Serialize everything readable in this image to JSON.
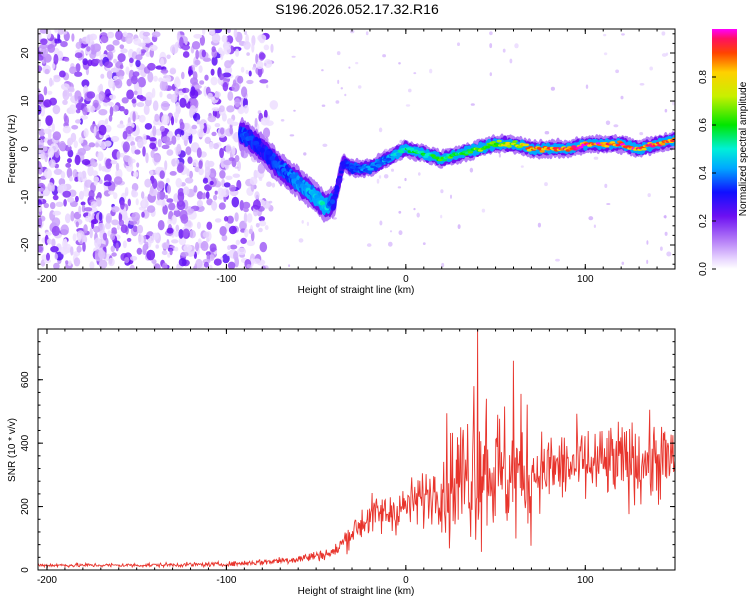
{
  "title": "S196.2026.052.17.32.R16",
  "chart_data": [
    {
      "type": "heatmap",
      "name": "spectrogram",
      "xlabel": "Height of straight line (km)",
      "ylabel": "Frequency (Hz)",
      "xlim": [
        -205,
        150
      ],
      "ylim": [
        -25,
        25
      ],
      "xticks": [
        -200,
        -100,
        0,
        100
      ],
      "yticks": [
        -20,
        -10,
        0,
        10,
        20
      ],
      "colorbar": {
        "label": "Normalized spectral amplitude",
        "range": [
          0,
          1
        ],
        "ticks": [
          "0.0",
          "0.2",
          "0.4",
          "0.6",
          "0.8"
        ]
      },
      "ridge": {
        "description_points_x": [
          -90,
          -80,
          -70,
          -60,
          -50,
          -45,
          -40,
          -35,
          -30,
          -20,
          -10,
          0,
          10,
          20,
          30,
          40,
          50,
          60,
          70,
          80,
          90,
          100,
          110,
          120,
          130,
          140,
          150
        ],
        "frequency_hz": [
          3,
          0,
          -4,
          -7,
          -10,
          -12,
          -11,
          -3,
          -4,
          -4,
          -2,
          0,
          -1,
          -2,
          -1,
          0,
          1,
          1,
          0,
          0,
          0,
          1,
          1,
          1,
          0,
          1,
          2
        ],
        "amplitude": [
          0.35,
          0.3,
          0.35,
          0.4,
          0.45,
          0.5,
          0.3,
          0.3,
          0.35,
          0.4,
          0.4,
          0.55,
          0.55,
          0.6,
          0.6,
          0.65,
          0.7,
          0.75,
          0.85,
          0.9,
          0.9,
          0.95,
          0.95,
          0.95,
          0.9,
          0.9,
          0.85
        ]
      },
      "noise_region_x": [
        -205,
        -95
      ]
    },
    {
      "type": "line",
      "name": "snr",
      "xlabel": "Height of straight line (km)",
      "ylabel": "SNR (10 * v/v)",
      "xlim": [
        -205,
        150
      ],
      "ylim": [
        0,
        760
      ],
      "xticks": [
        -200,
        -100,
        0,
        100
      ],
      "yticks": [
        0,
        200,
        400,
        600
      ],
      "series_color": "#e8342c",
      "envelope": {
        "x": [
          -205,
          -150,
          -100,
          -80,
          -60,
          -40,
          -30,
          -20,
          -10,
          0,
          10,
          20,
          30,
          40,
          50,
          60,
          70,
          80,
          100,
          120,
          140,
          150
        ],
        "y": [
          15,
          15,
          18,
          25,
          35,
          55,
          120,
          170,
          180,
          200,
          230,
          260,
          290,
          320,
          310,
          300,
          310,
          320,
          330,
          340,
          345,
          340
        ]
      },
      "spikes": [
        {
          "x": 40,
          "y": 760
        },
        {
          "x": 38,
          "y": 580
        },
        {
          "x": 60,
          "y": 660
        },
        {
          "x": 45,
          "y": 540
        }
      ]
    }
  ]
}
